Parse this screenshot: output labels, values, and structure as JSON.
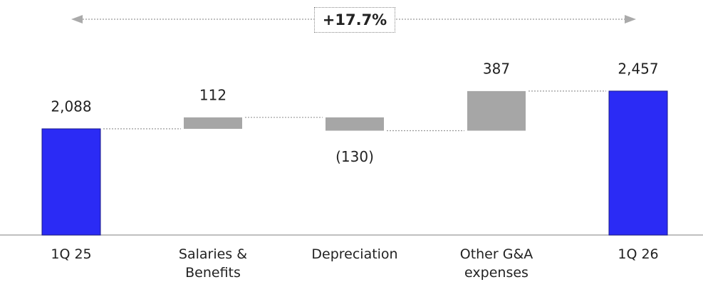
{
  "chart_data": {
    "type": "waterfall",
    "categories": [
      "1Q 25",
      "Salaries & Benefits",
      "Depreciation",
      "Other G&A expenses",
      "1Q 26"
    ],
    "values": [
      2088,
      112,
      -130,
      387,
      2457
    ],
    "value_labels": [
      "2,088",
      "112",
      "(130)",
      "387",
      "2,457"
    ],
    "totals": [
      true,
      false,
      false,
      false,
      true
    ],
    "color": "#2b2bf5",
    "delta_color": "#a6a6a6",
    "annotation": "+17.7%",
    "ylim": [
      1050,
      2700
    ]
  }
}
